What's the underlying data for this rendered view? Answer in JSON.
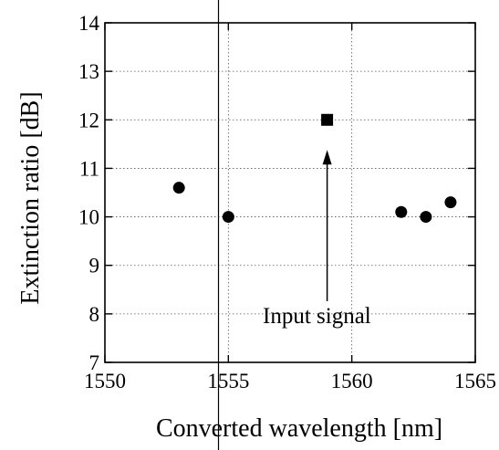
{
  "chart_data": {
    "type": "scatter",
    "title": "",
    "xlabel": "Converted wavelength [nm]",
    "ylabel": "Extinction ratio [dB]",
    "xlim": [
      1550,
      1565
    ],
    "ylim": [
      7,
      14
    ],
    "x_ticks": [
      1550,
      1555,
      1560,
      1565
    ],
    "y_ticks": [
      7,
      8,
      9,
      10,
      11,
      12,
      13,
      14
    ],
    "grid": "dotted",
    "legend": "none",
    "series": [
      {
        "marker": "circle",
        "color": "#000000",
        "points": [
          {
            "x": 1553,
            "y": 10.6
          },
          {
            "x": 1555,
            "y": 10.0
          },
          {
            "x": 1562,
            "y": 10.1
          },
          {
            "x": 1563,
            "y": 10.0
          },
          {
            "x": 1564,
            "y": 10.3
          }
        ]
      },
      {
        "marker": "square",
        "color": "#000000",
        "points": [
          {
            "x": 1559,
            "y": 12.0
          }
        ]
      }
    ],
    "annotations": [
      {
        "text": "Input signal",
        "x": 1559,
        "y": 12.0
      }
    ]
  }
}
